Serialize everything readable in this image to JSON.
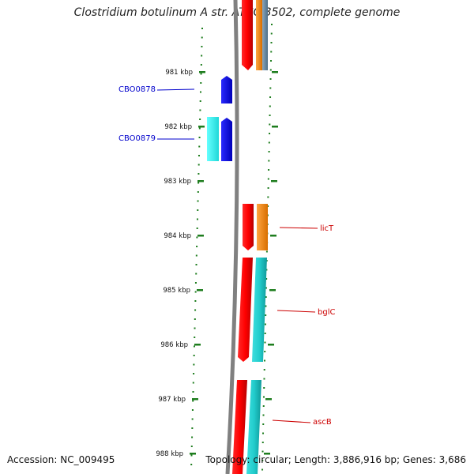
{
  "title": "Clostridium botulinum A str. ATCC 3502, complete genome",
  "footer": {
    "accession": "Accession: NC_009495",
    "topology": "Topology: circular; Length: 3,886,916 bp; Genes: 3,686"
  },
  "colors": {
    "tick": "#1e7d1e",
    "backbone": "#808080",
    "red_feature": "#ff0000",
    "orange_feature": "#ff8c00",
    "cyan_feature": "#22cccc",
    "light_cyan_feature": "#33ffff",
    "blue_feature": "#0000ff",
    "gray_feature": "#6f8fa8",
    "blue_label": "#0000cc",
    "red_label": "#cc0000"
  },
  "ticks": [
    {
      "label": "981 kbp",
      "kbp": 981
    },
    {
      "label": "982 kbp",
      "kbp": 982
    },
    {
      "label": "983 kbp",
      "kbp": 983
    },
    {
      "label": "984 kbp",
      "kbp": 984
    },
    {
      "label": "985 kbp",
      "kbp": 985
    },
    {
      "label": "986 kbp",
      "kbp": 986
    },
    {
      "label": "987 kbp",
      "kbp": 987
    },
    {
      "label": "988 kbp",
      "kbp": 988
    }
  ],
  "gene_labels": [
    {
      "name": "CBO0878",
      "color": "blue"
    },
    {
      "name": "CBO0879",
      "color": "blue"
    },
    {
      "name": "licT",
      "color": "red"
    },
    {
      "name": "bglC",
      "color": "red"
    },
    {
      "name": "ascB",
      "color": "red"
    }
  ]
}
